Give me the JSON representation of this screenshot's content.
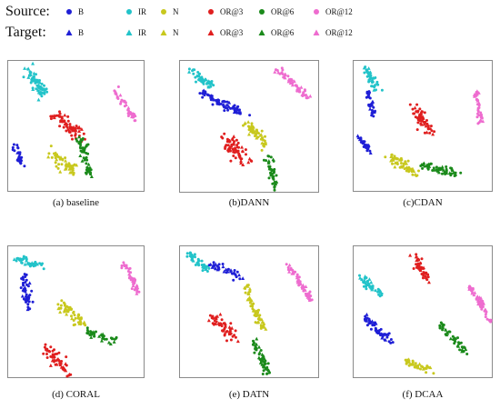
{
  "legend": {
    "source_title": "Source:",
    "target_title": "Target:",
    "classes": [
      {
        "label": "B",
        "color": "#1f1fd6"
      },
      {
        "label": "IR",
        "color": "#22c3c9"
      },
      {
        "label": "N",
        "color": "#c8c81e"
      },
      {
        "label": "OR@3",
        "color": "#e01f1f"
      },
      {
        "label": "OR@6",
        "color": "#1b8a1b"
      },
      {
        "label": "OR@12",
        "color": "#ee6ccf"
      }
    ],
    "source_marker": "circle",
    "target_marker": "triangle"
  },
  "panels": [
    {
      "caption": "(a) baseline"
    },
    {
      "caption": "(b)DANN"
    },
    {
      "caption": "(c)CDAN"
    },
    {
      "caption": "(d) CORAL"
    },
    {
      "caption": "(e) DATN"
    },
    {
      "caption": "(f) DCAA"
    }
  ]
}
